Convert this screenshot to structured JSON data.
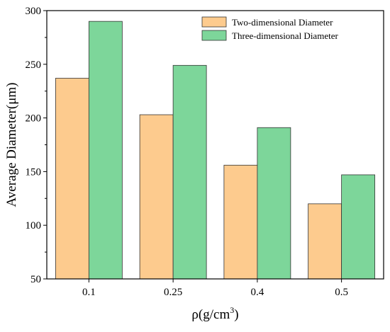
{
  "chart_data": {
    "type": "bar",
    "categories": [
      "0.1",
      "0.25",
      "0.4",
      "0.5"
    ],
    "series": [
      {
        "name": "Two-dimensional Diameter",
        "values": [
          237,
          203,
          156,
          120
        ],
        "color": "#FDCB8E"
      },
      {
        "name": "Three-dimensional Diameter",
        "values": [
          290,
          249,
          191,
          147
        ],
        "color": "#7DD69A"
      }
    ],
    "xlabel": "ρ(g/cm³)",
    "xlabel_base": "ρ(g/cm",
    "xlabel_sup": "3",
    "xlabel_close": ")",
    "ylabel": "Average Diameter(μm)",
    "ylim": [
      50,
      300
    ],
    "yticks": [
      "50",
      "100",
      "150",
      "200",
      "250",
      "300"
    ],
    "grid": false,
    "legend_position": "top-right"
  }
}
